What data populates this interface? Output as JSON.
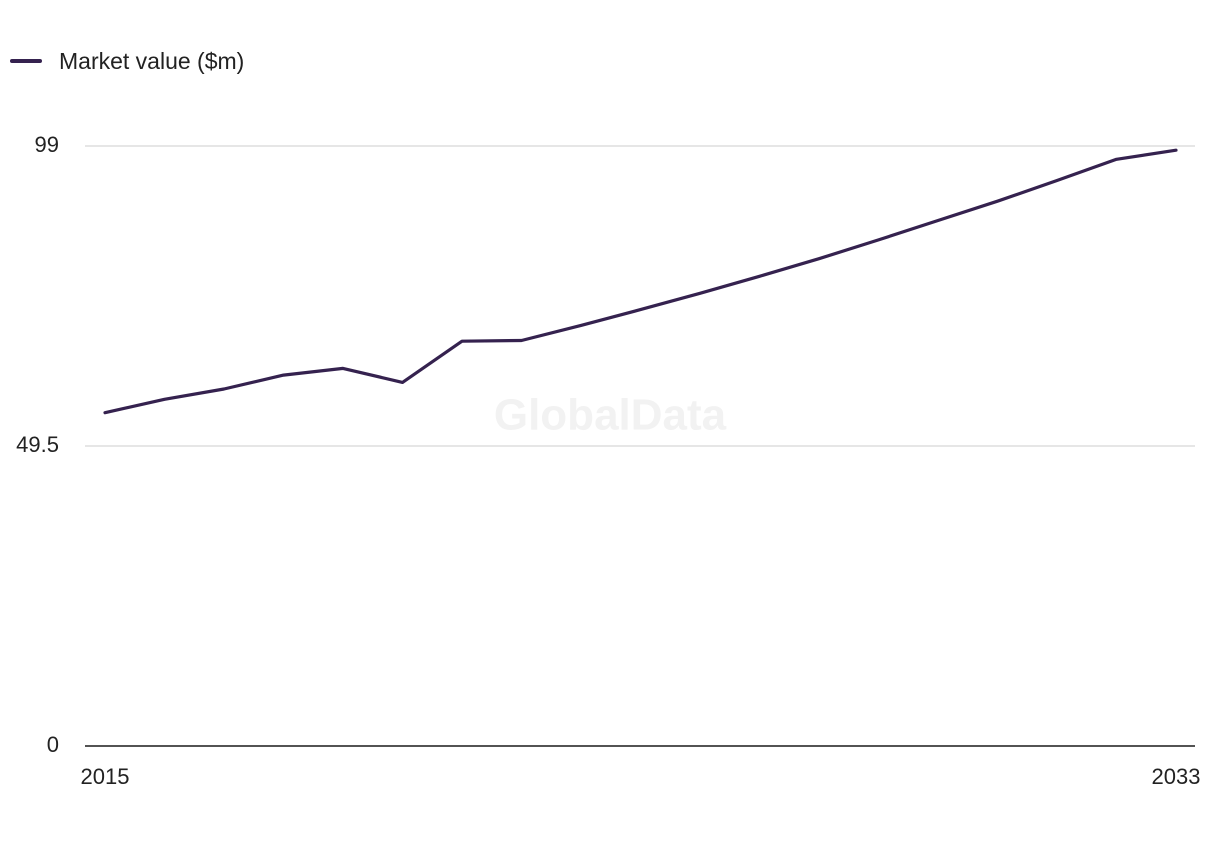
{
  "chart_data": {
    "type": "line",
    "watermark": "GlobalData",
    "x": [
      2015,
      2016,
      2017,
      2018,
      2019,
      2020,
      2021,
      2022,
      2023,
      2024,
      2025,
      2026,
      2027,
      2028,
      2029,
      2030,
      2031,
      2032,
      2033
    ],
    "x_tick_labels": [
      "2015",
      "2033"
    ],
    "y_ticks": [
      0,
      49.5,
      99
    ],
    "y_tick_labels": [
      "0",
      "49.5",
      "99"
    ],
    "ylim": [
      0,
      99
    ],
    "grid": true,
    "legend_position": "top-left",
    "series": [
      {
        "name": "Market value ($m)",
        "color": "#35224f",
        "values": [
          55.0,
          57.2,
          58.9,
          61.2,
          62.3,
          60.0,
          66.8,
          66.9,
          69.4,
          72.0,
          74.7,
          77.5,
          80.4,
          83.5,
          86.7,
          89.9,
          93.3,
          96.8,
          98.3
        ]
      }
    ]
  }
}
